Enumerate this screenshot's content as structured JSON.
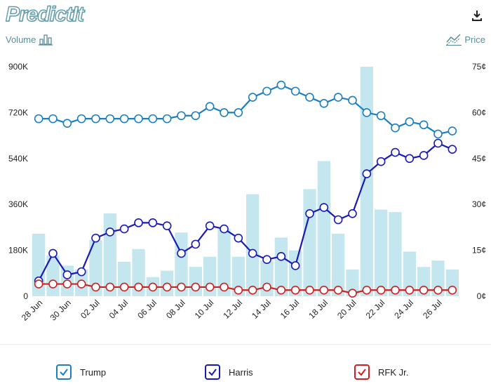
{
  "app": {
    "logo_text": "PredictIt"
  },
  "toolbar": {
    "volume_label": "Volume",
    "price_label": "Price"
  },
  "legend": [
    {
      "label": "Trump",
      "color": "#1a7fc1"
    },
    {
      "label": "Harris",
      "color": "#1919b8"
    },
    {
      "label": "RFK Jr.",
      "color": "#cc2222"
    }
  ],
  "chart_data": {
    "type": "bar+line",
    "x": [
      "28 Jun",
      "29 Jun",
      "30 Jun",
      "01 Jul",
      "02 Jul",
      "03 Jul",
      "04 Jul",
      "05 Jul",
      "06 Jul",
      "07 Jul",
      "08 Jul",
      "09 Jul",
      "10 Jul",
      "11 Jul",
      "12 Jul",
      "13 Jul",
      "14 Jul",
      "15 Jul",
      "16 Jul",
      "17 Jul",
      "18 Jul",
      "19 Jul",
      "20 Jul",
      "21 Jul",
      "22 Jul",
      "23 Jul",
      "24 Jul",
      "25 Jul",
      "26 Jul",
      "27 Jul"
    ],
    "x_tick_labels": [
      "28 Jun",
      "30 Jun",
      "02 Jul",
      "04 Jul",
      "06 Jul",
      "08 Jul",
      "10 Jul",
      "12 Jul",
      "14 Jul",
      "16 Jul",
      "18 Jul",
      "20 Jul",
      "22 Jul",
      "24 Jul",
      "26 Jul"
    ],
    "volume": {
      "name": "Volume",
      "color": "#c4e7ef",
      "ylim": [
        0,
        900000
      ],
      "ticks": [
        "0",
        "180K",
        "360K",
        "540K",
        "720K",
        "900K"
      ],
      "values": [
        245000,
        160000,
        120000,
        105000,
        220000,
        325000,
        135000,
        185000,
        75000,
        100000,
        250000,
        115000,
        155000,
        265000,
        155000,
        400000,
        140000,
        230000,
        180000,
        420000,
        530000,
        245000,
        105000,
        900000,
        340000,
        330000,
        175000,
        115000,
        140000,
        105000
      ]
    },
    "price": {
      "ylim": [
        0,
        75
      ],
      "ticks": [
        "0¢",
        "15¢",
        "30¢",
        "45¢",
        "60¢",
        "75¢"
      ],
      "series": [
        {
          "name": "Trump",
          "color": "#1a7fc1",
          "values": [
            58,
            58,
            56.5,
            58,
            58,
            58,
            58,
            58,
            58,
            58,
            59,
            59,
            62,
            60,
            60,
            65,
            67,
            69,
            67,
            65,
            63,
            65,
            64,
            60,
            59,
            55,
            57,
            56,
            53,
            54
          ]
        },
        {
          "name": "Harris",
          "color": "#1919b8",
          "values": [
            5,
            14,
            7,
            8,
            19,
            21,
            22,
            24,
            24,
            23,
            14,
            17,
            23,
            22,
            19,
            14,
            12,
            13,
            10,
            27,
            29,
            25,
            27,
            40,
            44,
            47,
            45,
            46,
            50,
            48
          ]
        },
        {
          "name": "RFK Jr.",
          "color": "#cc2222",
          "values": [
            4,
            4,
            4,
            4,
            3,
            3,
            3,
            3,
            3,
            3,
            3,
            3,
            3,
            3,
            2,
            2,
            3,
            2,
            2,
            2,
            2,
            2,
            1,
            2,
            2,
            2,
            2,
            2,
            2,
            2
          ]
        }
      ]
    }
  }
}
